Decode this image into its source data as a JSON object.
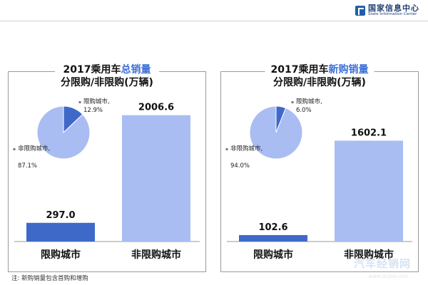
{
  "header": {
    "logo_cn": "国家信息中心",
    "logo_en": "State Information Center"
  },
  "panels": [
    {
      "title_prefix": "2017乘用车",
      "title_highlight": "总销量",
      "subtitle": "分限购/非限购(万辆)"
    },
    {
      "title_prefix": "2017乘用车",
      "title_highlight": "新购销量",
      "subtitle": "分限购/非限购(万辆)"
    }
  ],
  "chart_data": [
    {
      "type": "bar",
      "categories": [
        "限购城市",
        "非限购城市"
      ],
      "values": [
        297.0,
        2006.6
      ],
      "value_labels": [
        "297.0",
        "2006.6"
      ],
      "ylim": [
        0,
        2150
      ],
      "colors": [
        "#3f69c9",
        "#a9bdf3"
      ],
      "inset_pie": {
        "type": "pie",
        "labels": [
          "限购城市,",
          "非限购城市,"
        ],
        "label_percents": [
          "12.9%",
          "87.1%"
        ],
        "values": [
          12.9,
          87.1
        ],
        "colors": [
          "#3f69c9",
          "#a9bdf3"
        ]
      }
    },
    {
      "type": "bar",
      "categories": [
        "限购城市",
        "非限购城市"
      ],
      "values": [
        102.6,
        1602.1
      ],
      "value_labels": [
        "102.6",
        "1602.1"
      ],
      "ylim": [
        0,
        2150
      ],
      "colors": [
        "#3f69c9",
        "#a9bdf3"
      ],
      "inset_pie": {
        "type": "pie",
        "labels": [
          "限购城市,",
          "非限购城市,"
        ],
        "label_percents": [
          "6.0%",
          "94.0%"
        ],
        "values": [
          6.0,
          94.0
        ],
        "colors": [
          "#3f69c9",
          "#a9bdf3"
        ]
      }
    }
  ],
  "footnote": "注: 新购销量包含首购和增购",
  "watermark": "汽车经销网",
  "watermark_url": "www.qcjxw.com"
}
